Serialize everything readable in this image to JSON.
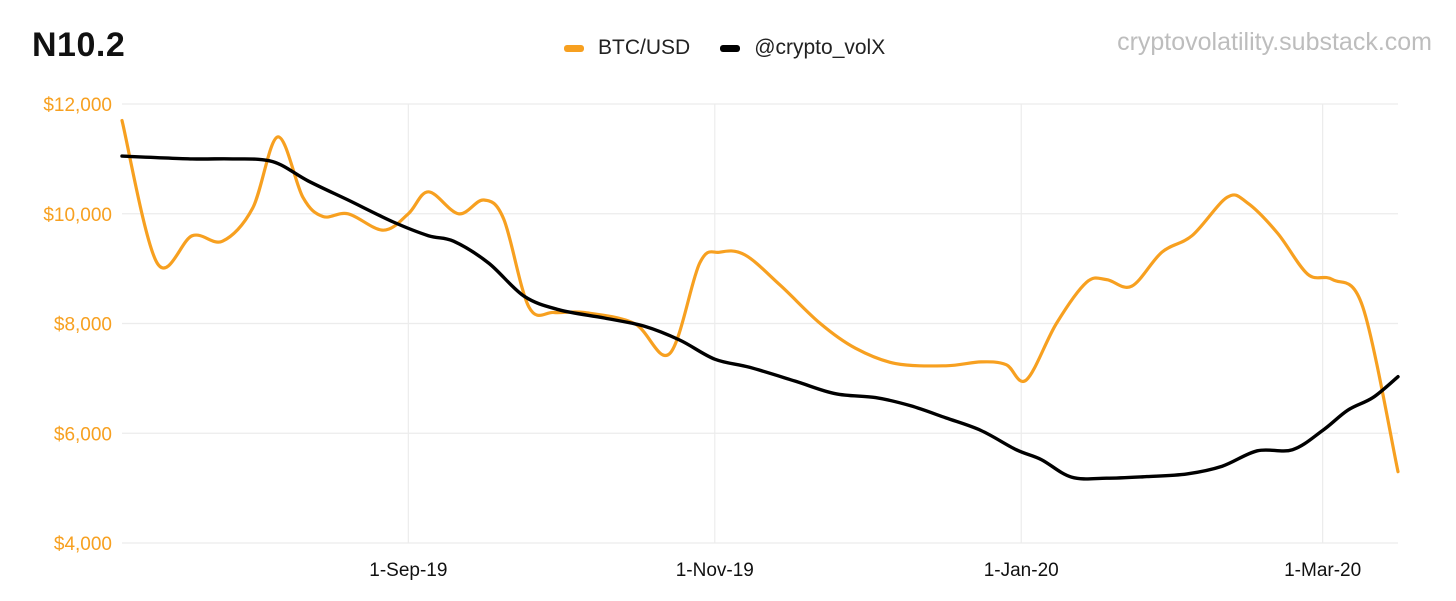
{
  "header": {
    "title": "N10.2",
    "watermark": "cryptovolatility.substack.com"
  },
  "colors": {
    "btc": "#f7a020",
    "vol": "#000000",
    "grid": "#ececec"
  },
  "chart_data": {
    "type": "line",
    "title": "N10.2",
    "xlabel": "",
    "ylabel": "",
    "x_range": [
      "2019-07-06",
      "2020-03-16"
    ],
    "ylim": [
      4000,
      12000
    ],
    "y_ticks": [
      4000,
      6000,
      8000,
      10000,
      12000
    ],
    "y_tick_labels": [
      "$4,000",
      "$6,000",
      "$8,000",
      "$10,000",
      "$12,000"
    ],
    "x_ticks": [
      {
        "date": "2019-09-01",
        "label": "1-Sep-19"
      },
      {
        "date": "2019-11-01",
        "label": "1-Nov-19"
      },
      {
        "date": "2020-01-01",
        "label": "1-Jan-20"
      },
      {
        "date": "2020-03-01",
        "label": "1-Mar-20"
      }
    ],
    "grid": true,
    "legend_position": "top-center",
    "series": [
      {
        "name": "BTC/USD",
        "color": "#f7a020",
        "points": [
          [
            "2019-07-06",
            11700
          ],
          [
            "2019-07-13",
            9100
          ],
          [
            "2019-07-20",
            9600
          ],
          [
            "2019-07-26",
            9500
          ],
          [
            "2019-08-01",
            10100
          ],
          [
            "2019-08-06",
            11400
          ],
          [
            "2019-08-11",
            10300
          ],
          [
            "2019-08-15",
            9950
          ],
          [
            "2019-08-20",
            10000
          ],
          [
            "2019-08-27",
            9700
          ],
          [
            "2019-09-01",
            10000
          ],
          [
            "2019-09-05",
            10400
          ],
          [
            "2019-09-11",
            10000
          ],
          [
            "2019-09-16",
            10250
          ],
          [
            "2019-09-20",
            9900
          ],
          [
            "2019-09-25",
            8300
          ],
          [
            "2019-09-30",
            8200
          ],
          [
            "2019-10-06",
            8200
          ],
          [
            "2019-10-16",
            8000
          ],
          [
            "2019-10-23",
            7450
          ],
          [
            "2019-10-29",
            9100
          ],
          [
            "2019-11-02",
            9300
          ],
          [
            "2019-11-07",
            9250
          ],
          [
            "2019-11-14",
            8700
          ],
          [
            "2019-11-22",
            8000
          ],
          [
            "2019-11-29",
            7550
          ],
          [
            "2019-12-07",
            7270
          ],
          [
            "2019-12-17",
            7230
          ],
          [
            "2019-12-24",
            7300
          ],
          [
            "2019-12-29",
            7250
          ],
          [
            "2020-01-02",
            6970
          ],
          [
            "2020-01-08",
            8000
          ],
          [
            "2020-01-14",
            8750
          ],
          [
            "2020-01-18",
            8800
          ],
          [
            "2020-01-23",
            8680
          ],
          [
            "2020-01-29",
            9300
          ],
          [
            "2020-02-04",
            9600
          ],
          [
            "2020-02-11",
            10300
          ],
          [
            "2020-02-15",
            10200
          ],
          [
            "2020-02-21",
            9650
          ],
          [
            "2020-02-27",
            8900
          ],
          [
            "2020-03-03",
            8800
          ],
          [
            "2020-03-09",
            8300
          ],
          [
            "2020-03-16",
            5300
          ]
        ]
      },
      {
        "name": "@crypto_volX",
        "color": "#000000",
        "points": [
          [
            "2019-07-06",
            11050
          ],
          [
            "2019-07-20",
            11000
          ],
          [
            "2019-07-28",
            11000
          ],
          [
            "2019-08-05",
            10950
          ],
          [
            "2019-08-12",
            10600
          ],
          [
            "2019-08-20",
            10250
          ],
          [
            "2019-08-29",
            9850
          ],
          [
            "2019-09-05",
            9600
          ],
          [
            "2019-09-10",
            9500
          ],
          [
            "2019-09-17",
            9100
          ],
          [
            "2019-09-24",
            8500
          ],
          [
            "2019-10-01",
            8250
          ],
          [
            "2019-10-10",
            8100
          ],
          [
            "2019-10-18",
            7950
          ],
          [
            "2019-10-25",
            7700
          ],
          [
            "2019-11-01",
            7350
          ],
          [
            "2019-11-08",
            7200
          ],
          [
            "2019-11-17",
            6950
          ],
          [
            "2019-11-25",
            6720
          ],
          [
            "2019-12-03",
            6650
          ],
          [
            "2019-12-10",
            6500
          ],
          [
            "2019-12-17",
            6280
          ],
          [
            "2019-12-24",
            6050
          ],
          [
            "2019-12-31",
            5700
          ],
          [
            "2020-01-05",
            5520
          ],
          [
            "2020-01-11",
            5200
          ],
          [
            "2020-01-18",
            5180
          ],
          [
            "2020-01-26",
            5210
          ],
          [
            "2020-02-03",
            5260
          ],
          [
            "2020-02-10",
            5400
          ],
          [
            "2020-02-17",
            5680
          ],
          [
            "2020-02-24",
            5700
          ],
          [
            "2020-03-01",
            6050
          ],
          [
            "2020-03-06",
            6420
          ],
          [
            "2020-03-11",
            6650
          ],
          [
            "2020-03-16",
            7030
          ]
        ]
      }
    ]
  }
}
